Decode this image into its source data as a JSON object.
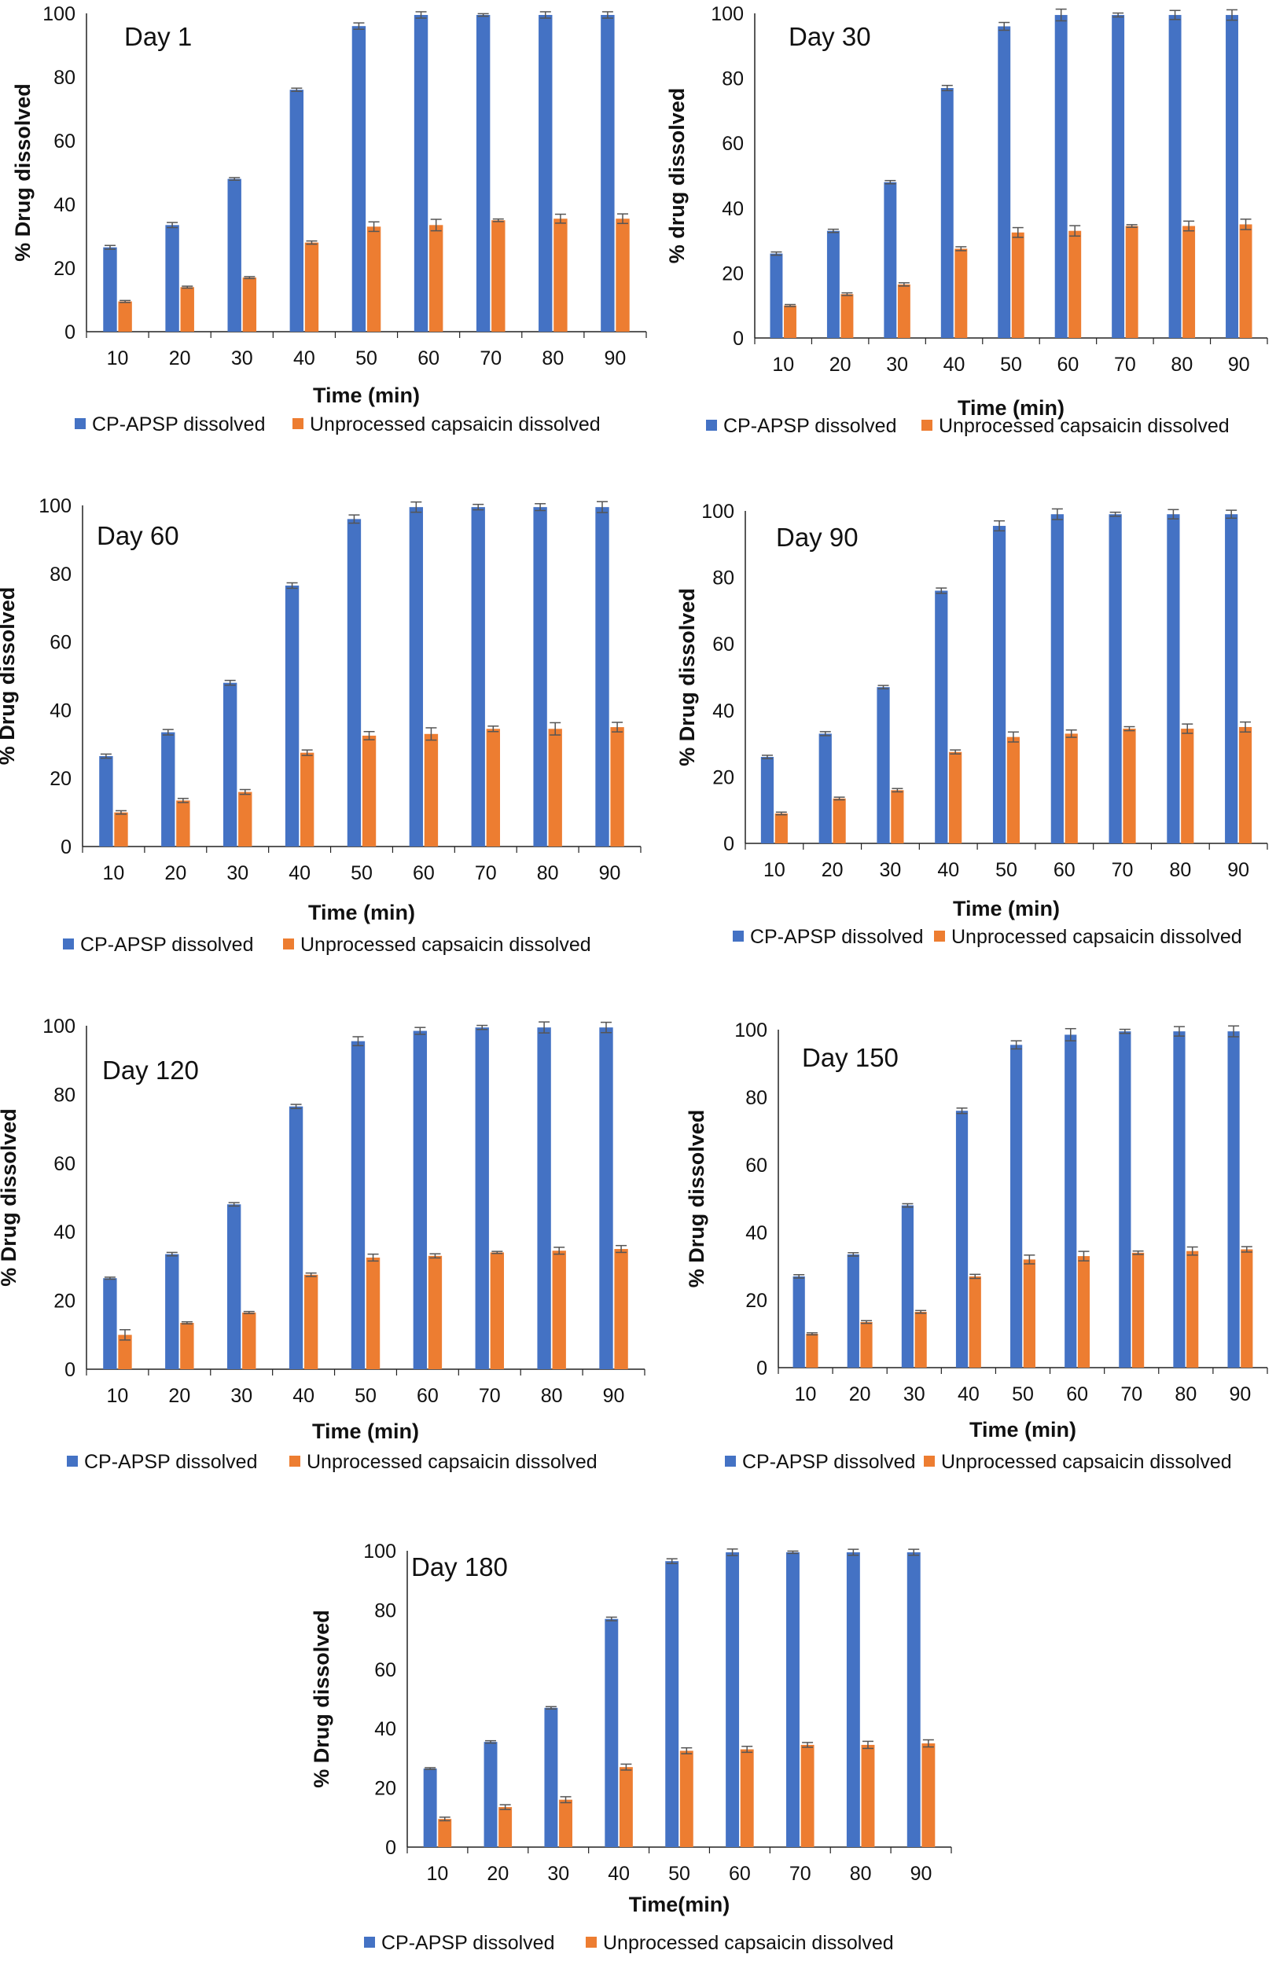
{
  "colors": {
    "series1": "#4472C4",
    "series2": "#ED7D31",
    "error": "#555555",
    "axis": "#222222"
  },
  "chart_data": [
    {
      "type": "bar",
      "title": "Day 1",
      "xlabel": "Time (min)",
      "ylabel": "% Drug dissolved",
      "ylim": [
        0,
        100
      ],
      "yticks": [
        0,
        20,
        40,
        60,
        80,
        100
      ],
      "grid": false,
      "legend": "bottom",
      "categories": [
        "10",
        "20",
        "30",
        "40",
        "50",
        "60",
        "70",
        "80",
        "90"
      ],
      "series": [
        {
          "name": "CP-APSP dissolved",
          "values": [
            26.5,
            33.5,
            48,
            76,
            96,
            99.5,
            99.5,
            99.5,
            99.5
          ],
          "errors": [
            0.6,
            0.8,
            0.4,
            0.5,
            1,
            1,
            0.4,
            1,
            1
          ]
        },
        {
          "name": "Unprocessed capsaicin dissolved",
          "values": [
            9.5,
            14,
            17,
            28,
            33,
            33.5,
            35,
            35.5,
            35.5
          ],
          "errors": [
            0.3,
            0.3,
            0.3,
            0.5,
            1.5,
            1.8,
            0.4,
            1.4,
            1.5
          ]
        }
      ]
    },
    {
      "type": "bar",
      "title": "Day 30",
      "xlabel": "Time (min)",
      "ylabel": "% drug dissolved",
      "ylim": [
        0,
        100
      ],
      "yticks": [
        0,
        20,
        40,
        60,
        80,
        100
      ],
      "grid": false,
      "legend": "bottom",
      "categories": [
        "10",
        "20",
        "30",
        "40",
        "50",
        "60",
        "70",
        "80",
        "90"
      ],
      "series": [
        {
          "name": "CP-APSP dissolved",
          "values": [
            26,
            33,
            48,
            77,
            96,
            99.5,
            99.5,
            99.5,
            99.5
          ],
          "errors": [
            0.5,
            0.5,
            0.5,
            0.8,
            1.2,
            1.8,
            0.6,
            1.4,
            1.6
          ]
        },
        {
          "name": "Unprocessed capsaicin dissolved",
          "values": [
            10,
            13.5,
            16.5,
            27.5,
            32.5,
            33,
            34.5,
            34.5,
            35
          ],
          "errors": [
            0.3,
            0.4,
            0.5,
            0.6,
            1.5,
            1.6,
            0.4,
            1.5,
            1.6
          ]
        }
      ]
    },
    {
      "type": "bar",
      "title": "Day 60",
      "xlabel": "Time (min)",
      "ylabel": "% Drug dissolved",
      "ylim": [
        0,
        100
      ],
      "yticks": [
        0,
        20,
        40,
        60,
        80,
        100
      ],
      "grid": false,
      "legend": "bottom",
      "categories": [
        "10",
        "20",
        "30",
        "40",
        "50",
        "60",
        "70",
        "80",
        "90"
      ],
      "series": [
        {
          "name": "CP-APSP dissolved",
          "values": [
            26.5,
            33.5,
            48,
            76.5,
            96,
            99.5,
            99.5,
            99.5,
            99.5
          ],
          "errors": [
            0.6,
            0.8,
            0.7,
            0.8,
            1.2,
            1.5,
            0.8,
            1,
            1.6
          ]
        },
        {
          "name": "Unprocessed capsaicin dissolved",
          "values": [
            10,
            13.5,
            16,
            27.5,
            32.5,
            33,
            34.5,
            34.5,
            35
          ],
          "errors": [
            0.5,
            0.6,
            0.7,
            0.8,
            1.2,
            1.8,
            0.8,
            1.8,
            1.4
          ]
        }
      ]
    },
    {
      "type": "bar",
      "title": "Day 90",
      "xlabel": "Time (min)",
      "ylabel": "% Drug dissolved",
      "ylim": [
        0,
        100
      ],
      "yticks": [
        0,
        20,
        40,
        60,
        80,
        100
      ],
      "grid": false,
      "legend": "bottom",
      "categories": [
        "10",
        "20",
        "30",
        "40",
        "50",
        "60",
        "70",
        "80",
        "90"
      ],
      "series": [
        {
          "name": "CP-APSP dissolved",
          "values": [
            26,
            33,
            47,
            76,
            95.5,
            99,
            99,
            99,
            99
          ],
          "errors": [
            0.5,
            0.6,
            0.5,
            0.8,
            1.5,
            1.6,
            0.6,
            1.4,
            1.2
          ]
        },
        {
          "name": "Unprocessed capsaicin dissolved",
          "values": [
            9,
            13.5,
            16,
            27.5,
            32,
            33,
            34.5,
            34.5,
            35
          ],
          "errors": [
            0.4,
            0.4,
            0.5,
            0.6,
            1.5,
            1.1,
            0.6,
            1.4,
            1.5
          ]
        }
      ]
    },
    {
      "type": "bar",
      "title": "Day 120",
      "xlabel": "Time (min)",
      "ylabel": "% Drug dissolved",
      "ylim": [
        0,
        100
      ],
      "yticks": [
        0,
        20,
        40,
        60,
        80,
        100
      ],
      "grid": false,
      "legend": "bottom",
      "categories": [
        "10",
        "20",
        "30",
        "40",
        "50",
        "60",
        "70",
        "80",
        "90"
      ],
      "series": [
        {
          "name": "CP-APSP dissolved",
          "values": [
            26.5,
            33.5,
            48,
            76.5,
            95.5,
            98.5,
            99.5,
            99.5,
            99.5
          ],
          "errors": [
            0.3,
            0.5,
            0.5,
            0.6,
            1.3,
            1,
            0.6,
            1.6,
            1.5
          ]
        },
        {
          "name": "Unprocessed capsaicin dissolved",
          "values": [
            10,
            13.5,
            16.5,
            27.5,
            32.5,
            33,
            34,
            34.5,
            35
          ],
          "errors": [
            1.5,
            0.3,
            0.3,
            0.5,
            1,
            0.6,
            0.3,
            1,
            1
          ]
        }
      ]
    },
    {
      "type": "bar",
      "title": "Day 150",
      "xlabel": "Time (min)",
      "ylabel": "% Drug dissolved",
      "ylim": [
        0,
        100
      ],
      "yticks": [
        0,
        20,
        40,
        60,
        80,
        100
      ],
      "grid": false,
      "legend": "bottom",
      "categories": [
        "10",
        "20",
        "30",
        "40",
        "50",
        "60",
        "70",
        "80",
        "90"
      ],
      "series": [
        {
          "name": "CP-APSP dissolved",
          "values": [
            27,
            33.5,
            48,
            76,
            95.5,
            98.5,
            99.5,
            99.5,
            99.5
          ],
          "errors": [
            0.5,
            0.5,
            0.5,
            0.8,
            1.2,
            1.8,
            0.6,
            1.4,
            1.6
          ]
        },
        {
          "name": "Unprocessed capsaicin dissolved",
          "values": [
            10,
            13.5,
            16.5,
            27,
            32,
            33,
            34,
            34.5,
            35
          ],
          "errors": [
            0.3,
            0.4,
            0.4,
            0.6,
            1.3,
            1.4,
            0.5,
            1.2,
            0.8
          ]
        }
      ]
    },
    {
      "type": "bar",
      "title": "Day 180",
      "xlabel": "Time(min)",
      "ylabel": "% Drug dissolved",
      "ylim": [
        0,
        100
      ],
      "yticks": [
        0,
        20,
        40,
        60,
        80,
        100
      ],
      "grid": false,
      "legend": "bottom",
      "categories": [
        "10",
        "20",
        "30",
        "40",
        "50",
        "60",
        "70",
        "80",
        "90"
      ],
      "series": [
        {
          "name": "CP-APSP dissolved",
          "values": [
            26.5,
            35.5,
            47,
            77,
            96.5,
            99.5,
            99.5,
            99.5,
            99.5
          ],
          "errors": [
            0.3,
            0.4,
            0.4,
            0.6,
            0.8,
            1.1,
            0.4,
            1,
            1
          ]
        },
        {
          "name": "Unprocessed capsaicin dissolved",
          "values": [
            9.5,
            13.5,
            16,
            27,
            32.5,
            33,
            34.5,
            34.5,
            35
          ],
          "errors": [
            0.6,
            0.8,
            1,
            1,
            1,
            1,
            0.8,
            1.2,
            1.2
          ]
        }
      ]
    }
  ]
}
